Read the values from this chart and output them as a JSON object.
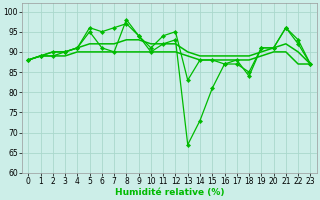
{
  "xlabel": "Humidité relative (%)",
  "xlim": [
    -0.5,
    23.5
  ],
  "ylim": [
    60,
    102
  ],
  "yticks": [
    60,
    65,
    70,
    75,
    80,
    85,
    90,
    95,
    100
  ],
  "xticks": [
    0,
    1,
    2,
    3,
    4,
    5,
    6,
    7,
    8,
    9,
    10,
    11,
    12,
    13,
    14,
    15,
    16,
    17,
    18,
    19,
    20,
    21,
    22,
    23
  ],
  "background_color": "#cceee8",
  "grid_color": "#aad8cc",
  "line_color": "#00bb00",
  "series": [
    {
      "y": [
        88,
        89,
        89,
        90,
        91,
        96,
        95,
        96,
        97,
        94,
        90,
        92,
        93,
        67,
        73,
        81,
        87,
        88,
        84,
        91,
        91,
        96,
        92,
        87
      ],
      "marker": true,
      "lw": 0.9
    },
    {
      "y": [
        88,
        89,
        90,
        90,
        91,
        95,
        91,
        90,
        98,
        94,
        91,
        94,
        95,
        83,
        88,
        88,
        87,
        87,
        85,
        91,
        91,
        96,
        93,
        87
      ],
      "marker": true,
      "lw": 0.9
    },
    {
      "y": [
        88,
        89,
        90,
        90,
        91,
        92,
        92,
        92,
        93,
        93,
        92,
        92,
        92,
        90,
        89,
        89,
        89,
        89,
        89,
        90,
        91,
        92,
        90,
        87
      ],
      "marker": false,
      "lw": 1.1
    },
    {
      "y": [
        88,
        89,
        89,
        89,
        90,
        90,
        90,
        90,
        90,
        90,
        90,
        90,
        90,
        89,
        88,
        88,
        88,
        88,
        88,
        89,
        90,
        90,
        87,
        87
      ],
      "marker": false,
      "lw": 1.1
    }
  ]
}
